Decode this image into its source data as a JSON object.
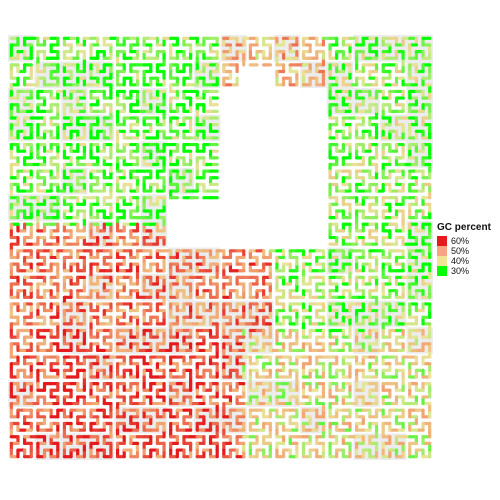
{
  "chart_data": {
    "type": "heatmap",
    "description_type": "hilbert-curve",
    "legend": {
      "title": "GC percent",
      "placement": "right",
      "entries": [
        {
          "label": "60%",
          "value": 60,
          "color": "#e41a1c"
        },
        {
          "label": "50%",
          "value": 50,
          "color": "#f4a582"
        },
        {
          "label": "40%",
          "value": 40,
          "color": "#f1e39a"
        },
        {
          "label": "30%",
          "value": 30,
          "color": "#00ff00"
        }
      ]
    },
    "color_scale": {
      "min": 30,
      "max": 60,
      "stops": [
        {
          "value": 30,
          "color": "#00ff00"
        },
        {
          "value": 40,
          "color": "#e9e59a"
        },
        {
          "value": 50,
          "color": "#f2a070"
        },
        {
          "value": 60,
          "color": "#e41a1c"
        }
      ]
    },
    "grid": false,
    "axes_visible": false,
    "regions": [
      {
        "area": "left-upper",
        "gc": 34
      },
      {
        "area": "right-upper",
        "gc": 46
      },
      {
        "area": "right-middle",
        "gc": 36
      },
      {
        "area": "left-lower",
        "gc": 52
      },
      {
        "area": "center-lower",
        "gc": 55
      },
      {
        "area": "right-lower",
        "gc": 42
      }
    ]
  }
}
